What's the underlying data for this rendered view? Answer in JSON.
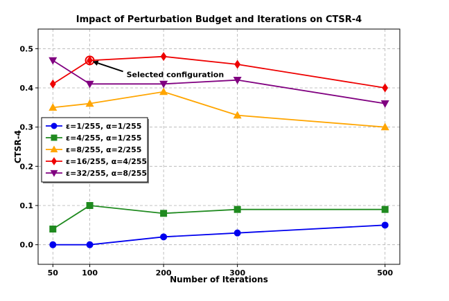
{
  "chart_data": {
    "type": "line",
    "title": "Impact of Perturbation Budget and Iterations on CTSR-4",
    "xlabel": "Number of Iterations",
    "ylabel": "CTSR-4",
    "x": [
      50,
      100,
      200,
      300,
      500
    ],
    "xticks": [
      "50",
      "100",
      "200",
      "300",
      "500"
    ],
    "yticks": [
      "0.0",
      "0.1",
      "0.2",
      "0.3",
      "0.4",
      "0.5"
    ],
    "xlim": [
      30,
      520
    ],
    "ylim": [
      -0.05,
      0.55
    ],
    "grid": true,
    "legend_position": "center-left",
    "series": [
      {
        "name": "ε=1/255, α=1/255",
        "color": "#0000ee",
        "marker": "circle",
        "values": [
          0.0,
          0.0,
          0.02,
          0.03,
          0.05
        ]
      },
      {
        "name": "ε=4/255, α=1/255",
        "color": "#1f8a1f",
        "marker": "square",
        "values": [
          0.04,
          0.1,
          0.08,
          0.09,
          0.09
        ]
      },
      {
        "name": "ε=8/255, α=2/255",
        "color": "#ffa500",
        "marker": "triangle-up",
        "values": [
          0.35,
          0.36,
          0.39,
          0.33,
          0.3
        ]
      },
      {
        "name": "ε=16/255, α=4/255",
        "color": "#ee0000",
        "marker": "diamond",
        "values": [
          0.41,
          0.47,
          0.48,
          0.46,
          0.4
        ]
      },
      {
        "name": "ε=32/255, α=8/255",
        "color": "#800080",
        "marker": "triangle-down",
        "values": [
          0.47,
          0.41,
          0.41,
          0.42,
          0.36
        ]
      }
    ],
    "annotation": {
      "text": "Selected configuration",
      "x": 100,
      "y": 0.47
    }
  }
}
